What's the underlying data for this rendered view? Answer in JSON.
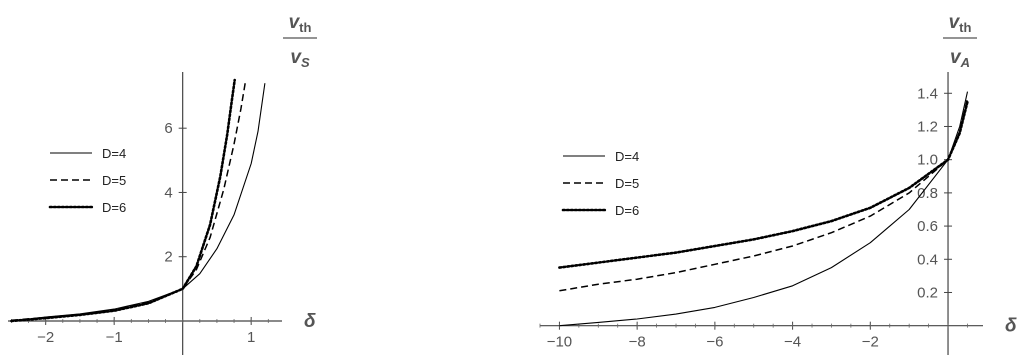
{
  "chart_data": [
    {
      "type": "line",
      "title": "",
      "xlabel": "δ",
      "ylabel": {
        "num_var": "v",
        "num_sub": "th",
        "den_var": "v",
        "den_sub": "S"
      },
      "xlim": [
        -2.55,
        1.45
      ],
      "ylim": [
        -0.25,
        7.5
      ],
      "xticks": [
        -2,
        -1,
        1
      ],
      "xtick_labels": [
        "−2",
        "−1",
        "1"
      ],
      "yticks": [
        2,
        4,
        6
      ],
      "ytick_labels": [
        "2",
        "4",
        "6"
      ],
      "grid": false,
      "legend_position": "left",
      "series": [
        {
          "name": "D=4",
          "style": "solid",
          "x": [
            -2.5,
            -2.0,
            -1.5,
            -1.0,
            -0.5,
            0.0,
            0.25,
            0.5,
            0.75,
            1.0,
            1.1,
            1.2
          ],
          "y": [
            0.0,
            0.12,
            0.22,
            0.37,
            0.61,
            1.0,
            1.47,
            2.25,
            3.3,
            4.9,
            5.9,
            7.4
          ]
        },
        {
          "name": "D=5",
          "style": "dashed",
          "x": [
            -2.5,
            -2.0,
            -1.5,
            -1.0,
            -0.5,
            0.0,
            0.2,
            0.4,
            0.6,
            0.75,
            0.85,
            0.92
          ],
          "y": [
            0.02,
            0.11,
            0.2,
            0.34,
            0.58,
            1.0,
            1.6,
            2.6,
            4.1,
            5.5,
            6.6,
            7.5
          ]
        },
        {
          "name": "D=6",
          "style": "dotted",
          "x": [
            -2.5,
            -2.0,
            -1.5,
            -1.0,
            -0.5,
            0.0,
            0.2,
            0.4,
            0.55,
            0.65,
            0.72,
            0.76
          ],
          "y": [
            0.0,
            0.09,
            0.19,
            0.32,
            0.55,
            1.0,
            1.7,
            3.0,
            4.5,
            5.8,
            6.9,
            7.5
          ]
        }
      ]
    },
    {
      "type": "line",
      "title": "",
      "xlabel": "δ",
      "ylabel": {
        "num_var": "v",
        "num_sub": "th",
        "den_var": "v",
        "den_sub": "A"
      },
      "xlim": [
        -10.5,
        0.9
      ],
      "ylim": [
        -0.02,
        1.48
      ],
      "xticks": [
        -10,
        -8,
        -6,
        -4,
        -2
      ],
      "xtick_labels": [
        "−10",
        "−8",
        "−6",
        "−4",
        "−2"
      ],
      "yticks": [
        0.2,
        0.4,
        0.6,
        0.8,
        1.0,
        1.2,
        1.4
      ],
      "ytick_labels": [
        "0.2",
        "0.4",
        "0.6",
        "0.8",
        "1.0",
        "1.2",
        "1.4"
      ],
      "grid": false,
      "legend_position": "left",
      "series": [
        {
          "name": "D=4",
          "style": "solid",
          "x": [
            -10,
            -9,
            -8,
            -7,
            -6,
            -5,
            -4,
            -3,
            -2,
            -1,
            0,
            0.3,
            0.5
          ],
          "y": [
            0.0,
            0.02,
            0.04,
            0.07,
            0.11,
            0.17,
            0.24,
            0.35,
            0.5,
            0.7,
            1.0,
            1.2,
            1.41
          ]
        },
        {
          "name": "D=5",
          "style": "dashed",
          "x": [
            -10,
            -9,
            -8,
            -7,
            -6,
            -5,
            -4,
            -3,
            -2,
            -1,
            0,
            0.3,
            0.5
          ],
          "y": [
            0.21,
            0.25,
            0.28,
            0.32,
            0.37,
            0.42,
            0.48,
            0.56,
            0.66,
            0.8,
            1.0,
            1.17,
            1.37
          ]
        },
        {
          "name": "D=6",
          "style": "dotted",
          "x": [
            -10,
            -9,
            -8,
            -7,
            -6,
            -5,
            -4,
            -3,
            -2,
            -1,
            0,
            0.3,
            0.5
          ],
          "y": [
            0.35,
            0.38,
            0.41,
            0.44,
            0.48,
            0.52,
            0.57,
            0.63,
            0.71,
            0.83,
            1.0,
            1.16,
            1.35
          ]
        }
      ]
    }
  ]
}
